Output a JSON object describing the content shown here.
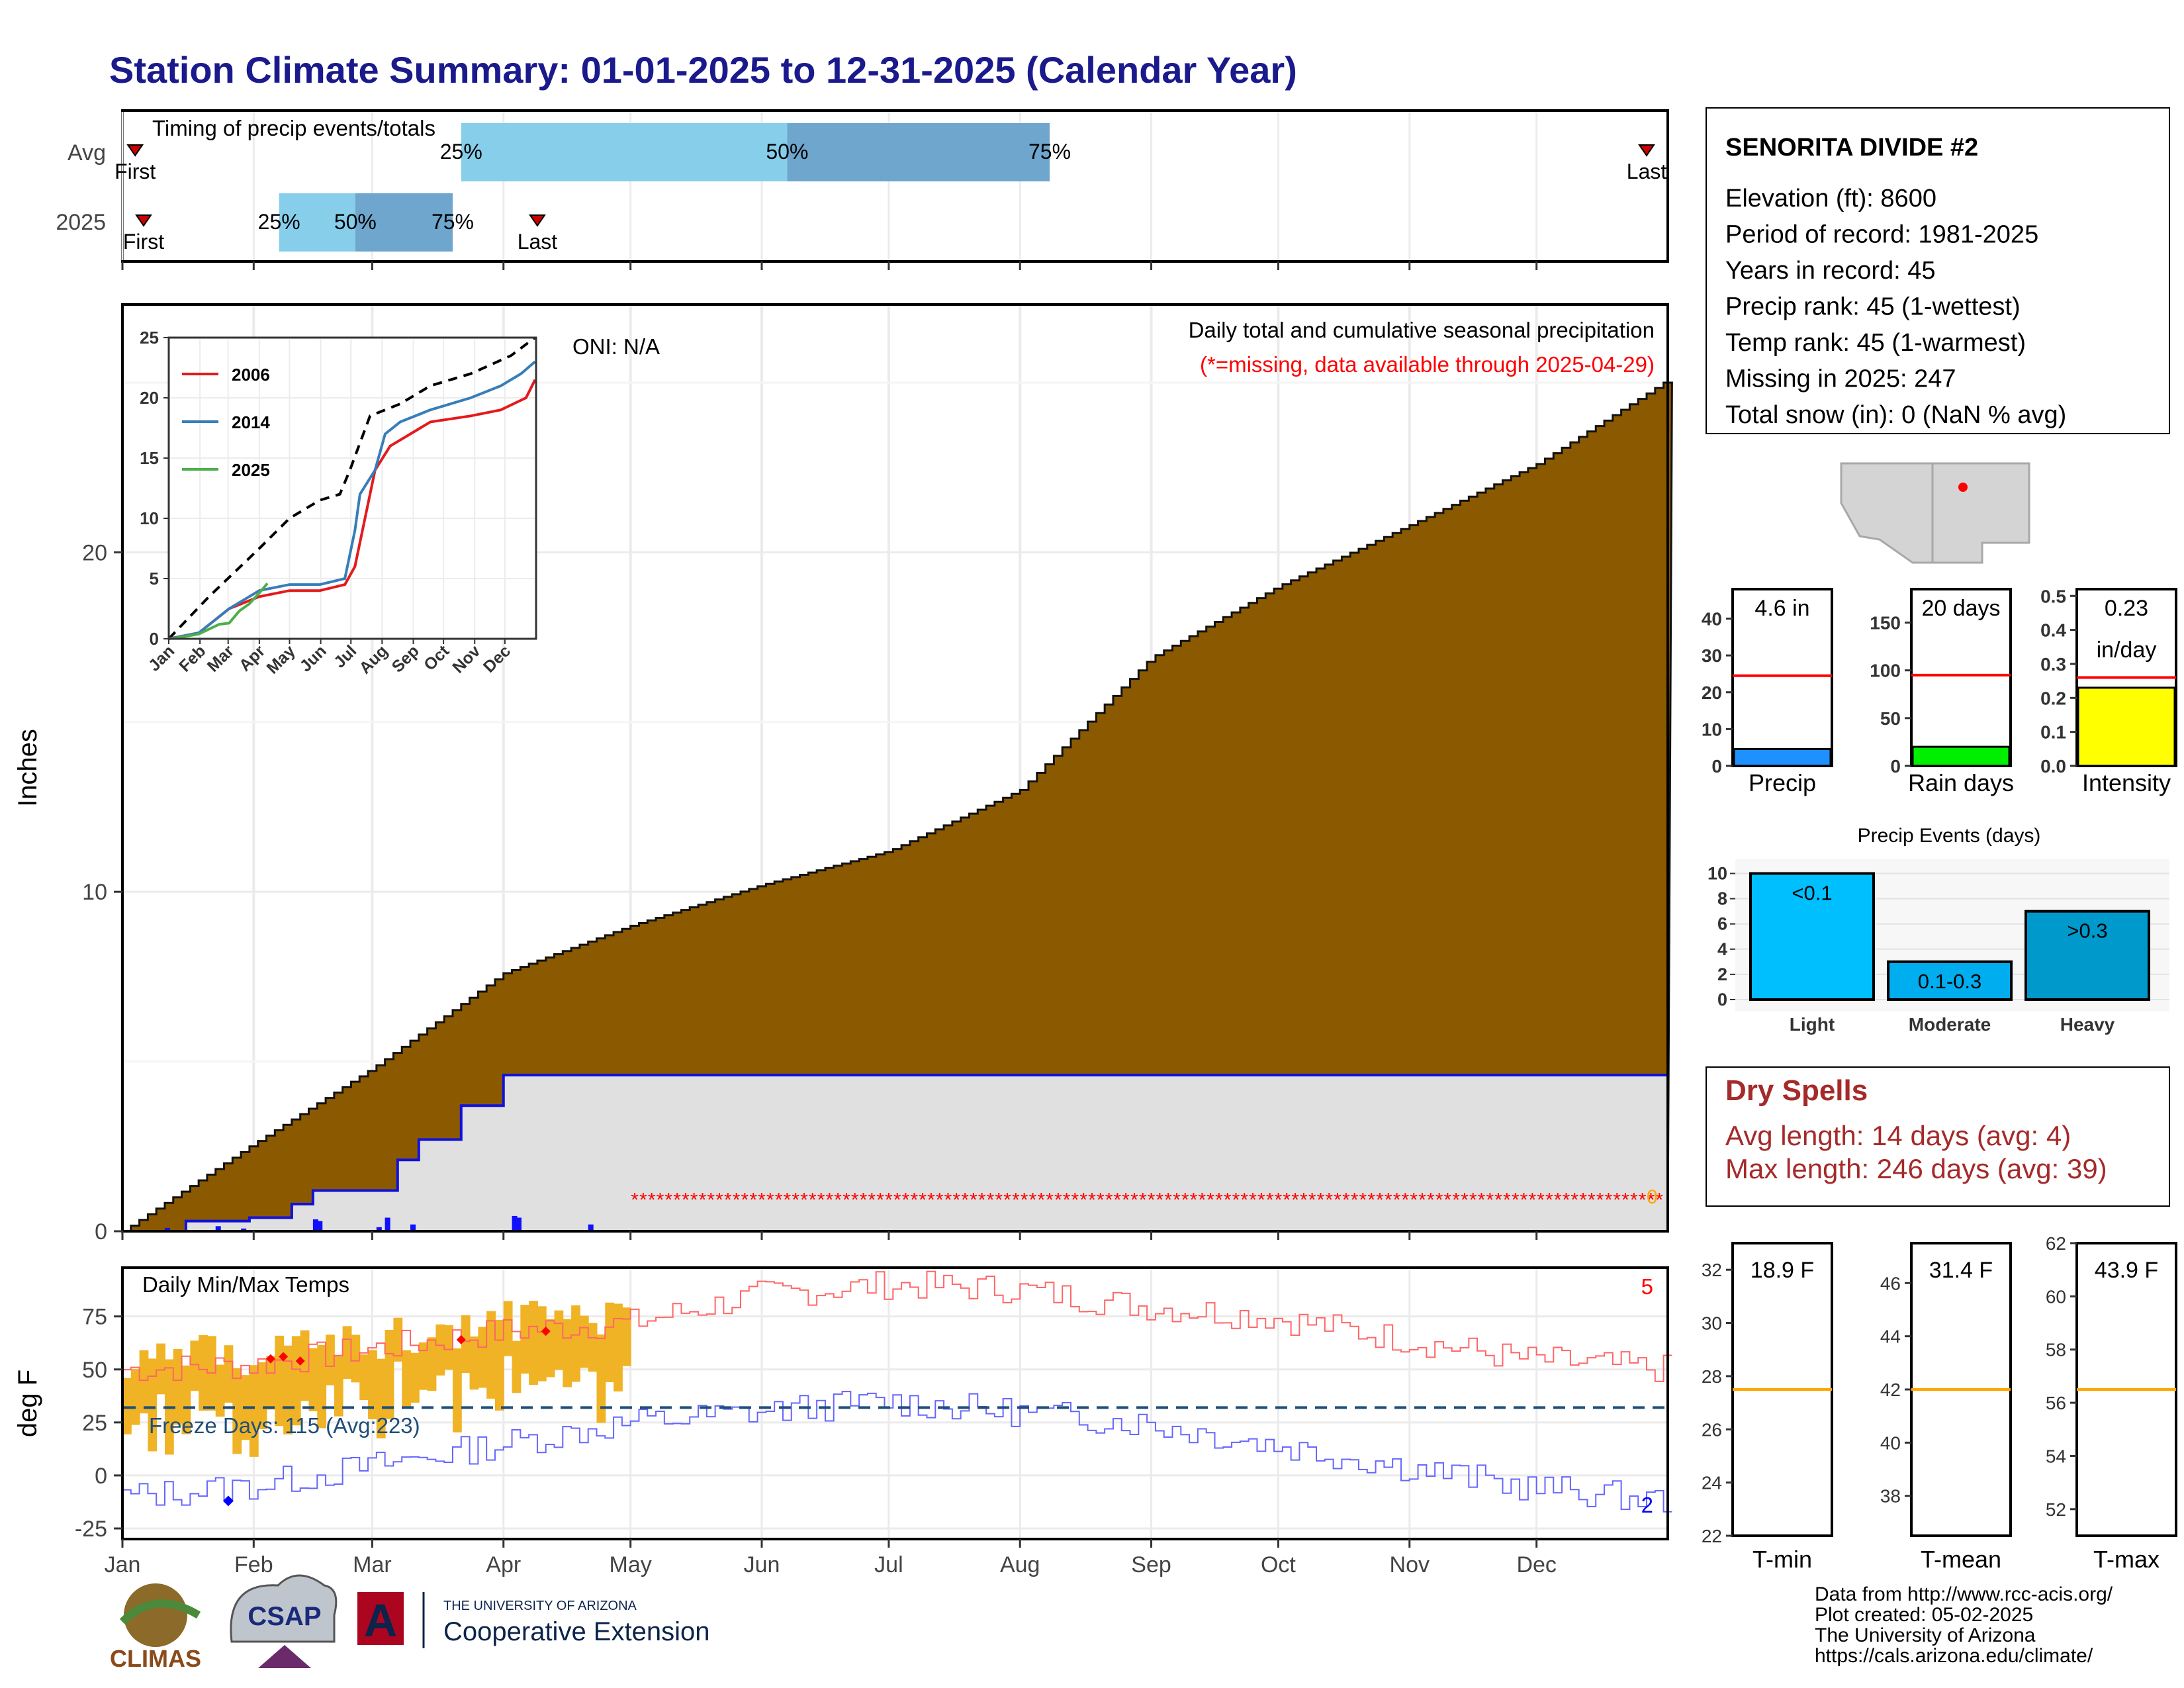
{
  "title": "Station Climate Summary: 01-01-2025 to 12-31-2025 (Calendar Year)",
  "colors": {
    "title": "#1a1a8c",
    "cum_fill": "#8b5a00",
    "cum_current_fill": "#e0e0e0",
    "cum_current_line": "#1010dd",
    "daily_bar": "#1010ff",
    "missing": "#ff0000",
    "temp_bar": "#f0b325",
    "tmax_line": "#ff6666",
    "tmin_line": "#6666ff",
    "freeze_line": "#1f4e79",
    "timing_light": "#87ceeb",
    "timing_dark": "#6ea6cd",
    "precip_bar": "#1e90ff",
    "raindays_bar": "#00ee00",
    "intensity_bar": "#ffff00",
    "events_light": "#00bfff",
    "events_moderate": "#00aeef",
    "events_heavy": "#0099cc",
    "dry_spell_text": "#a52a2a",
    "avg_line": "#ff0000",
    "temp_avg_line": "#ffa500"
  },
  "timing": {
    "title": "Timing of precip events/totals",
    "row_labels": [
      "Avg",
      "2025"
    ],
    "avg": {
      "first_day": 3,
      "q25_day": 80,
      "q50_day": 157,
      "q75_day": 219,
      "last_day": 360,
      "first_label": "First",
      "last_label": "Last"
    },
    "y2025": {
      "first_day": 5,
      "q25_day": 37,
      "q50_day": 55,
      "q75_day": 78,
      "last_day": 98,
      "first_label": "First",
      "last_label": "Last"
    },
    "pct_labels": [
      "25%",
      "50%",
      "75%"
    ]
  },
  "main": {
    "ylabel": "Inches",
    "oni": "ONI: N/A",
    "note1": "Daily total and cumulative seasonal precipitation",
    "note2": "(*=missing, data available through 2025-04-29)",
    "missing_count_label": "0",
    "yticks": [
      0,
      10,
      20
    ],
    "ylim": [
      0,
      27.3
    ]
  },
  "inset": {
    "yticks": [
      0,
      5,
      10,
      15,
      20,
      25
    ],
    "xticks": [
      "Jan",
      "Feb",
      "Mar",
      "Apr",
      "May",
      "Jun",
      "Jul",
      "Aug",
      "Sep",
      "Oct",
      "Nov",
      "Dec"
    ],
    "legend": [
      {
        "name": "2006",
        "color": "#e41a1c"
      },
      {
        "name": "2014",
        "color": "#377eb8"
      },
      {
        "name": "2025",
        "color": "#4daf4a"
      }
    ]
  },
  "temps": {
    "title": "Daily Min/Max Temps",
    "ylabel": "deg F",
    "freeze": "Freeze Days: 115 (Avg:223)",
    "tmax_records": "5",
    "tmin_records": "2",
    "yticks": [
      -25,
      0,
      25,
      50,
      75
    ]
  },
  "months": [
    "Jan",
    "Feb",
    "Mar",
    "Apr",
    "May",
    "Jun",
    "Jul",
    "Aug",
    "Sep",
    "Oct",
    "Nov",
    "Dec"
  ],
  "station": {
    "name": "SENORITA DIVIDE #2",
    "lines": [
      "Elevation (ft): 8600",
      "Period of record: 1981-2025",
      "Years in record: 45",
      "Precip rank: 45 (1-wettest)",
      "Temp rank: 45 (1-warmest)",
      "Missing in 2025: 247",
      "Total snow (in): 0 (NaN % avg)"
    ]
  },
  "summary_bars": [
    {
      "key": "precip",
      "label": "Precip",
      "value_label": "4.6 in",
      "value": 4.6,
      "avg": 24.5,
      "yticks": [
        0,
        10,
        20,
        30,
        40
      ],
      "ymax": 48
    },
    {
      "key": "raindays",
      "label": "Rain days",
      "value_label": "20 days",
      "value": 20,
      "avg": 95,
      "yticks": [
        0,
        50,
        100,
        150
      ],
      "ymax": 185
    },
    {
      "key": "intensity",
      "label": "Intensity",
      "value_label": "0.23",
      "value_label2": "in/day",
      "value": 0.23,
      "avg": 0.26,
      "yticks": [
        0.0,
        0.1,
        0.2,
        0.3,
        0.4,
        0.5
      ],
      "ymax": 0.52
    }
  ],
  "events": {
    "title": "Precip Events (days)",
    "categories": [
      "Light",
      "Moderate",
      "Heavy"
    ],
    "bar_labels": [
      "<0.1",
      "0.1-0.3",
      ">0.3"
    ],
    "values": [
      10,
      3,
      7
    ],
    "yticks": [
      0,
      2,
      4,
      6,
      8,
      10
    ],
    "ymax": 10.5
  },
  "dry_spells": {
    "title": "Dry Spells",
    "avg": "Avg length: 14 days (avg: 4)",
    "max": "Max length: 246 days (avg: 39)"
  },
  "temp_summary": [
    {
      "label": "T-min",
      "value_label": "18.9 F",
      "avg": 27.5,
      "yticks": [
        22,
        24,
        26,
        28,
        30,
        32
      ],
      "ylim": [
        22,
        33
      ]
    },
    {
      "label": "T-mean",
      "value_label": "31.4 F",
      "avg": 42,
      "yticks": [
        38,
        40,
        42,
        44,
        46
      ],
      "ylim": [
        36.5,
        47.5
      ]
    },
    {
      "label": "T-max",
      "value_label": "43.9 F",
      "avg": 56.5,
      "yticks": [
        52,
        54,
        56,
        58,
        60,
        62
      ],
      "ylim": [
        51,
        62
      ]
    }
  ],
  "footer": {
    "lines": [
      "Data from http://www.rcc-acis.org/",
      "Plot created: 05-02-2025",
      "The University of Arizona",
      "https://cals.arizona.edu/climate/"
    ],
    "logo_climas": "CLIMAS",
    "logo_csap": "CSAP",
    "logo_ua_small": "THE UNIVERSITY OF ARIZONA",
    "logo_ua_big": "Cooperative Extension",
    "logo_ua_letter": "A"
  },
  "chart_data": {
    "type": "area",
    "title": "Daily total and cumulative seasonal precipitation",
    "ylabel": "Inches",
    "ylim": [
      0,
      27.3
    ],
    "series": [
      {
        "name": "",
        "x_day": [
          0,
          30,
          59,
          90,
          120,
          151,
          181,
          212,
          243,
          273,
          304,
          334,
          364
        ],
        "values": [
          0,
          2.5,
          4.8,
          7.6,
          9.0,
          10.2,
          11.2,
          13.0,
          16.9,
          19.0,
          20.8,
          22.6,
          25.0
        ]
      },
      {
        "name": "",
        "x_day": [
          0,
          15,
          30,
          40,
          45,
          55,
          65,
          70,
          80,
          90,
          98,
          364
        ],
        "values": [
          0,
          0.3,
          0.4,
          0.8,
          1.2,
          1.2,
          2.1,
          2.7,
          3.7,
          4.6,
          4.6,
          4.6
        ]
      }
    ],
    "daily_precip": {
      "day": [
        10,
        22,
        28,
        45,
        46,
        60,
        62,
        68,
        92,
        93,
        110
      ],
      "values": [
        0.1,
        0.15,
        0.08,
        0.35,
        0.3,
        0.12,
        0.4,
        0.2,
        0.45,
        0.4,
        0.2
      ]
    },
    "inset": {
      "ylim": [
        0,
        25
      ],
      "series": [
        {
          "name": "",
          "x": [
            0,
            40,
            90,
            120,
            150,
            170,
            180,
            200,
            230,
            260,
            300,
            340,
            364
          ],
          "values": [
            0,
            3.5,
            7.5,
            10,
            11.5,
            12,
            14,
            18.5,
            19.5,
            21,
            22,
            23.5,
            25
          ]
        },
        {
          "name": "2006",
          "x": [
            0,
            30,
            60,
            90,
            120,
            150,
            175,
            185,
            195,
            205,
            220,
            240,
            260,
            300,
            330,
            355,
            364
          ],
          "values": [
            0,
            0.5,
            2.5,
            3.5,
            4.0,
            4.0,
            4.5,
            6,
            10,
            14,
            16,
            17,
            18,
            18.5,
            19,
            20,
            21.5
          ]
        },
        {
          "name": "2014",
          "x": [
            0,
            30,
            60,
            90,
            120,
            150,
            175,
            185,
            190,
            205,
            215,
            230,
            260,
            300,
            330,
            350,
            364
          ],
          "values": [
            0,
            0.5,
            2.5,
            4.0,
            4.5,
            4.5,
            5,
            9,
            12,
            14,
            17,
            18,
            19,
            20,
            21,
            22,
            23
          ]
        },
        {
          "name": "2025",
          "x": [
            0,
            10,
            30,
            40,
            50,
            60,
            70,
            80,
            90,
            98
          ],
          "values": [
            0,
            0.1,
            0.4,
            0.8,
            1.2,
            1.3,
            2.3,
            2.9,
            3.8,
            4.6
          ]
        }
      ]
    },
    "temps": {
      "ylim": [
        -30,
        98
      ],
      "tmax_sample": {
        "day": [
          0,
          30,
          60,
          90,
          120,
          150,
          180,
          210,
          240,
          270,
          300,
          330,
          364
        ],
        "values": [
          50,
          52,
          60,
          68,
          72,
          85,
          90,
          88,
          80,
          75,
          65,
          55,
          50
        ]
      },
      "tmin_sample": {
        "day": [
          0,
          30,
          60,
          90,
          120,
          150,
          180,
          210,
          240,
          270,
          300,
          330,
          364
        ],
        "values": [
          -10,
          -5,
          5,
          15,
          25,
          30,
          35,
          30,
          25,
          15,
          5,
          -5,
          -12
        ]
      },
      "freeze_line": 32
    }
  }
}
